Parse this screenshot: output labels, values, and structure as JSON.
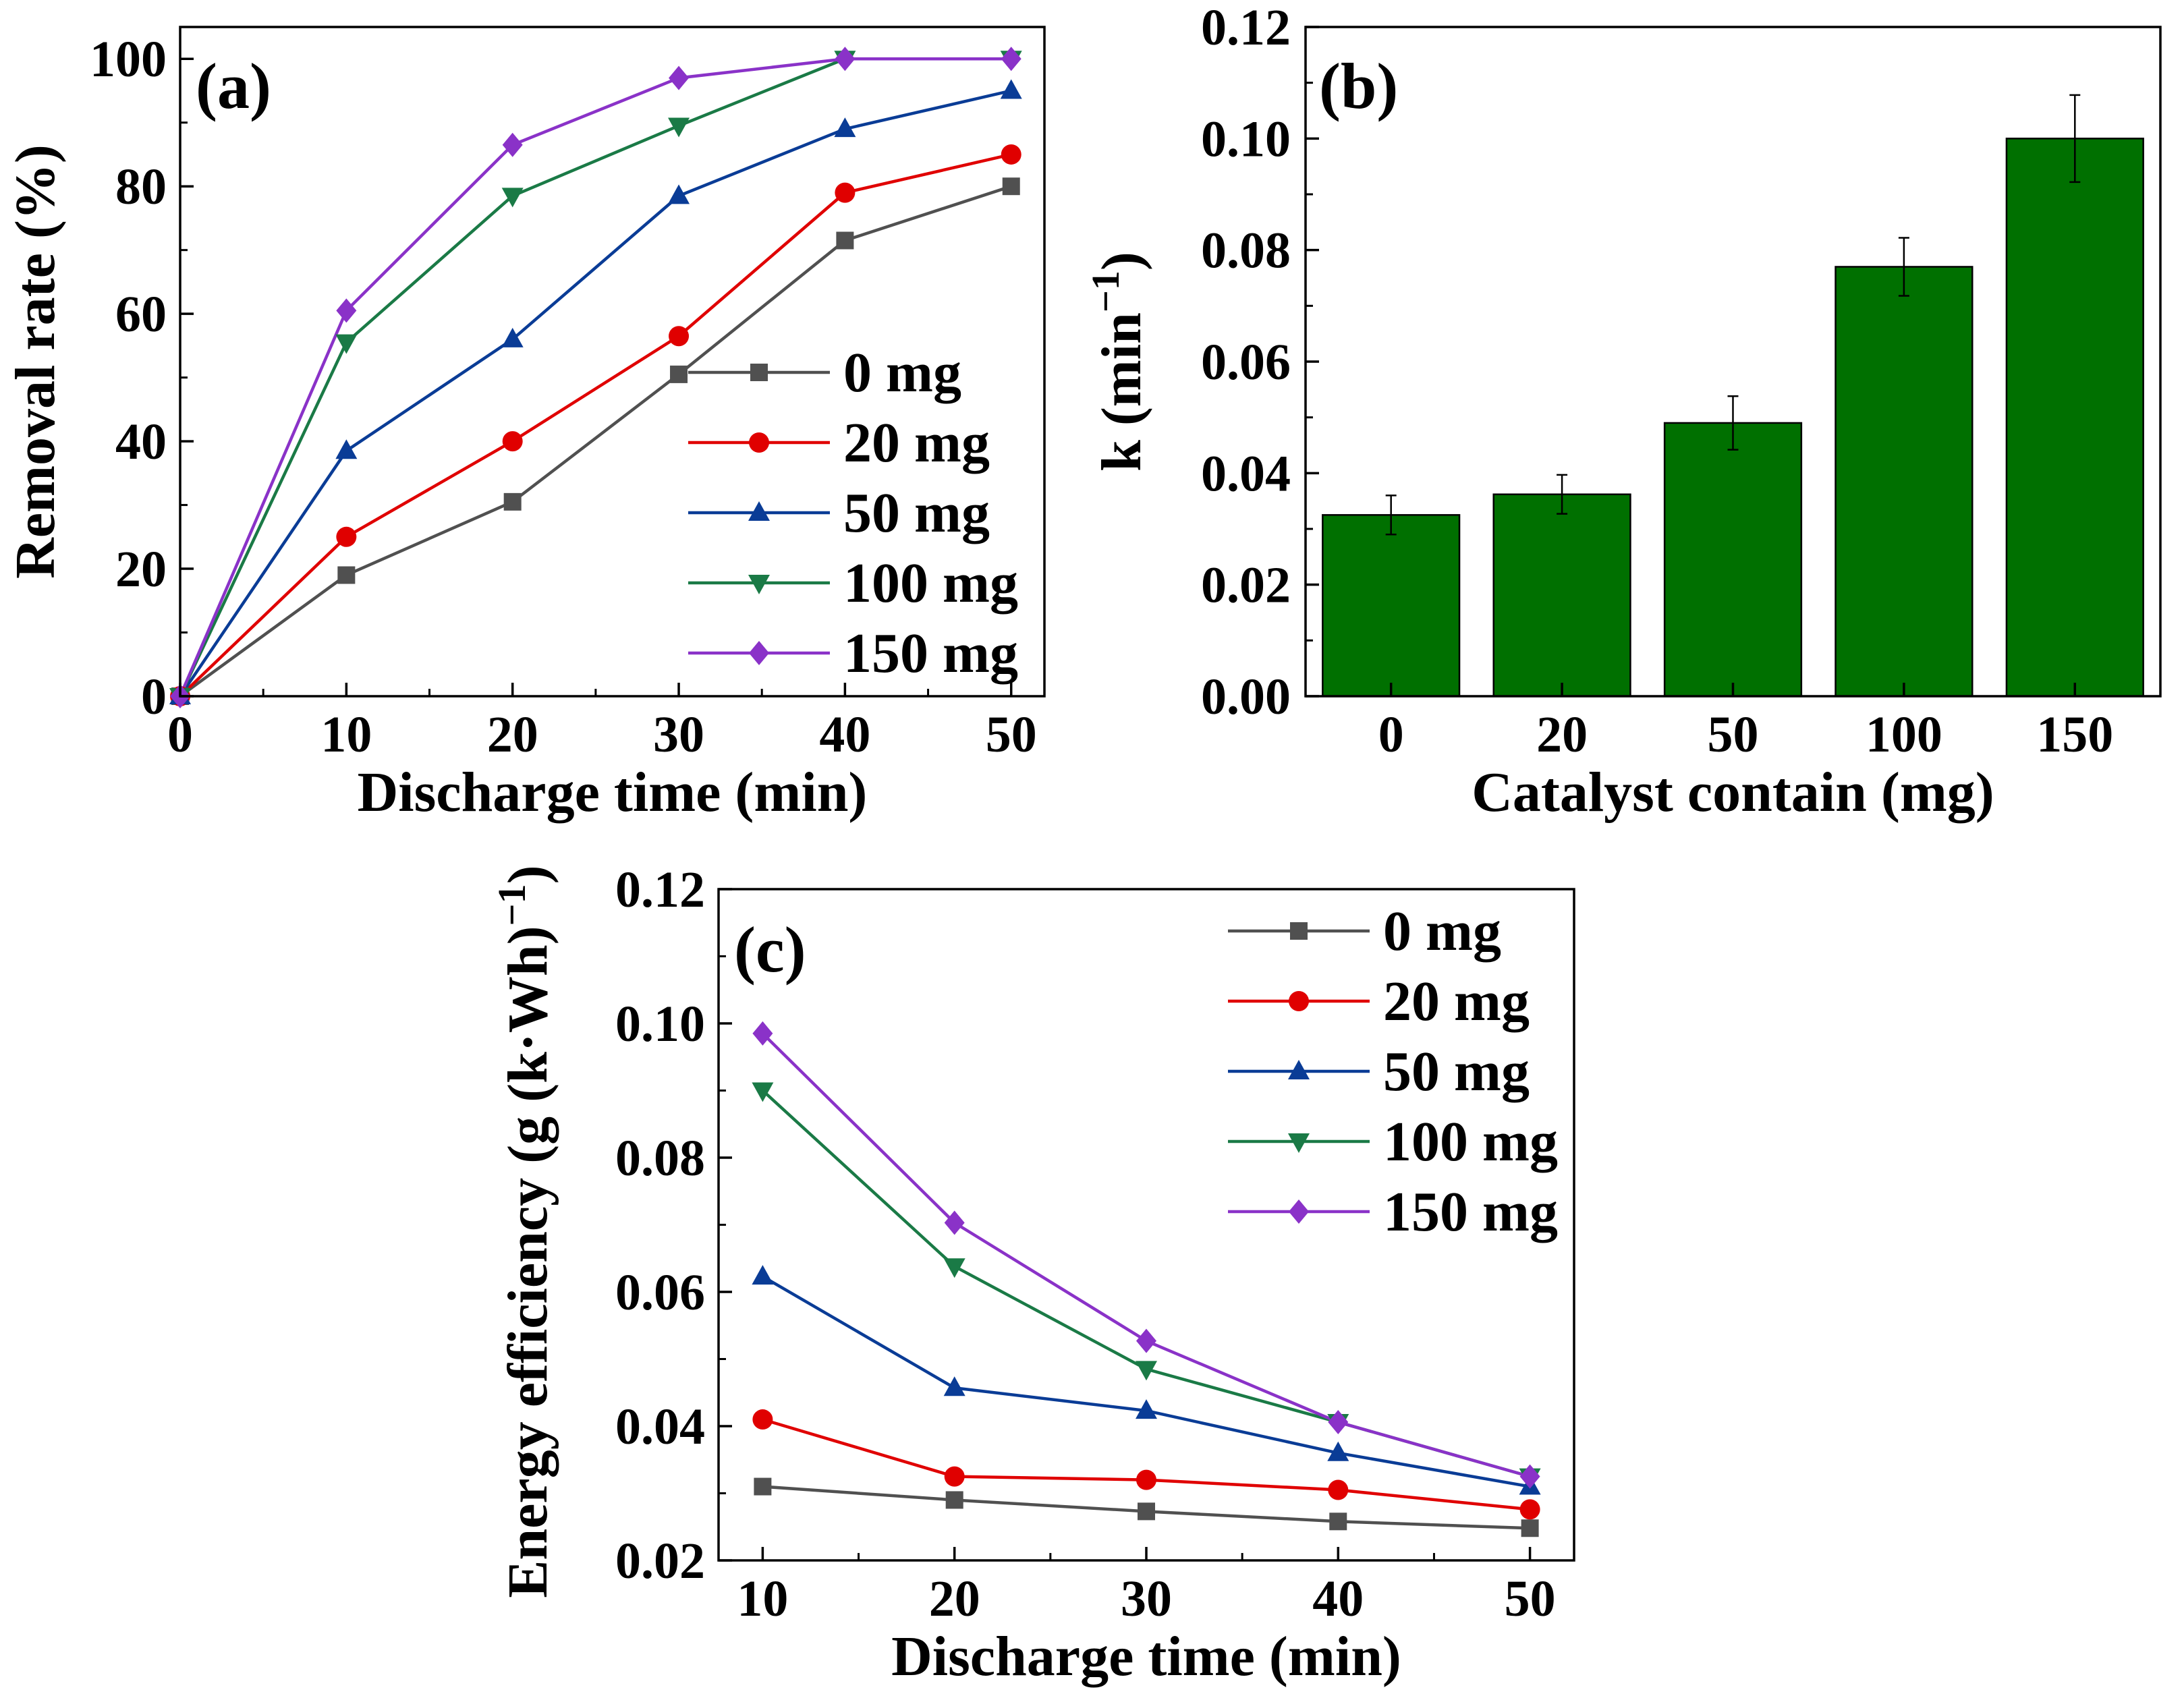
{
  "chart_data": [
    {
      "id": "a",
      "type": "line",
      "panel_label": "(a)",
      "xlabel": "Discharge time (min)",
      "ylabel": "Removal rate (%)",
      "xlim": [
        0,
        52
      ],
      "ylim": [
        0,
        105
      ],
      "xticks": [
        0,
        10,
        20,
        30,
        40,
        50
      ],
      "xtick_labels": [
        "0",
        "10",
        "20",
        "30",
        "40",
        "50"
      ],
      "yticks": [
        0,
        20,
        40,
        60,
        80,
        100
      ],
      "ytick_labels": [
        "0",
        "20",
        "40",
        "60",
        "80",
        "100"
      ],
      "legend_position": "bottom-right",
      "x": [
        0,
        10,
        20,
        30,
        40,
        50
      ],
      "series": [
        {
          "name": "0 mg",
          "color": "#505050",
          "marker": "square",
          "values": [
            0,
            19,
            30.5,
            50.5,
            71.5,
            80
          ]
        },
        {
          "name": "20 mg",
          "color": "#e00000",
          "marker": "circle",
          "values": [
            0,
            25,
            40,
            56.5,
            79,
            85
          ]
        },
        {
          "name": "50 mg",
          "color": "#0a3c96",
          "marker": "triangle-up",
          "values": [
            0,
            38.5,
            56,
            78.5,
            89,
            95
          ]
        },
        {
          "name": "100 mg",
          "color": "#1a7a46",
          "marker": "triangle-down",
          "values": [
            0,
            55.5,
            78.5,
            89.5,
            100,
            100
          ]
        },
        {
          "name": "150 mg",
          "color": "#8a32c8",
          "marker": "diamond",
          "values": [
            0,
            60.5,
            86.5,
            97,
            100,
            100
          ]
        }
      ]
    },
    {
      "id": "b",
      "type": "bar",
      "panel_label": "(b)",
      "xlabel": "Catalyst contain (mg)",
      "ylabel_main": "k (min",
      "ylabel_sup": "−1",
      "ylabel_end": ")",
      "categories": [
        "0",
        "20",
        "50",
        "100",
        "150"
      ],
      "values": [
        0.0325,
        0.0362,
        0.049,
        0.077,
        0.1
      ],
      "errors": [
        0.0035,
        0.0035,
        0.0048,
        0.0052,
        0.0078
      ],
      "bar_color": "#007000",
      "ylim": [
        0,
        0.12
      ],
      "yticks": [
        0,
        0.02,
        0.04,
        0.06,
        0.08,
        0.1,
        0.12
      ],
      "ytick_labels": [
        "0.00",
        "0.02",
        "0.04",
        "0.06",
        "0.08",
        "0.10",
        "0.12"
      ]
    },
    {
      "id": "c",
      "type": "line",
      "panel_label": "(c)",
      "xlabel": "Discharge time (min)",
      "ylabel_main": "Energy efficiency (g (k·Wh)",
      "ylabel_sup": "−1",
      "ylabel_end": ")",
      "xlim": [
        7.7,
        52.3
      ],
      "ylim": [
        0.02,
        0.12
      ],
      "xticks": [
        10,
        20,
        30,
        40,
        50
      ],
      "xtick_labels": [
        "10",
        "20",
        "30",
        "40",
        "50"
      ],
      "yticks": [
        0.02,
        0.04,
        0.06,
        0.08,
        0.1,
        0.12
      ],
      "ytick_labels": [
        "0.02",
        "0.04",
        "0.06",
        "0.08",
        "0.10",
        "0.12"
      ],
      "legend_position": "top-right",
      "x": [
        10,
        20,
        30,
        40,
        50
      ],
      "series": [
        {
          "name": "0 mg",
          "color": "#505050",
          "marker": "square",
          "values": [
            0.031,
            0.029,
            0.0273,
            0.0258,
            0.0248
          ]
        },
        {
          "name": "20 mg",
          "color": "#e00000",
          "marker": "circle",
          "values": [
            0.041,
            0.0325,
            0.032,
            0.0305,
            0.0276
          ]
        },
        {
          "name": "50 mg",
          "color": "#0a3c96",
          "marker": "triangle-up",
          "values": [
            0.0623,
            0.0457,
            0.0423,
            0.036,
            0.031
          ]
        },
        {
          "name": "100 mg",
          "color": "#1a7a46",
          "marker": "triangle-down",
          "values": [
            0.09,
            0.0638,
            0.0485,
            0.0406,
            0.0325
          ]
        },
        {
          "name": "150 mg",
          "color": "#8a32c8",
          "marker": "diamond",
          "values": [
            0.0985,
            0.0703,
            0.0527,
            0.0406,
            0.0325
          ]
        }
      ]
    }
  ]
}
